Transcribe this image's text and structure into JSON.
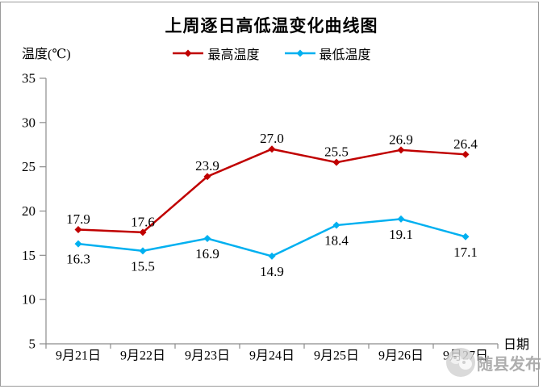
{
  "page": {
    "watermark": {
      "text": "随县发布",
      "icon": "wechat-account-logo-icon"
    }
  },
  "chart_data": {
    "type": "line",
    "title": "上周逐日高低温变化曲线图",
    "ylabel": "温度(℃)",
    "xlabel": "日期",
    "categories": [
      "9月21日",
      "9月22日",
      "9月23日",
      "9月24日",
      "9月25日",
      "9月26日",
      "9月27日"
    ],
    "series": [
      {
        "name": "最高温度",
        "color": "#C00000",
        "label_position": "above",
        "values": [
          17.9,
          17.6,
          23.9,
          27.0,
          25.5,
          26.9,
          26.4
        ]
      },
      {
        "name": "最低温度",
        "color": "#00B0F0",
        "label_position": "below",
        "values": [
          16.3,
          15.5,
          16.9,
          14.9,
          18.4,
          19.1,
          17.1
        ]
      }
    ],
    "ylim": [
      5,
      35
    ],
    "yticks": [
      5,
      10,
      15,
      20,
      25,
      30,
      35
    ],
    "grid": false,
    "legend_position": "top-center",
    "axis_color": "#8c8c8c"
  }
}
